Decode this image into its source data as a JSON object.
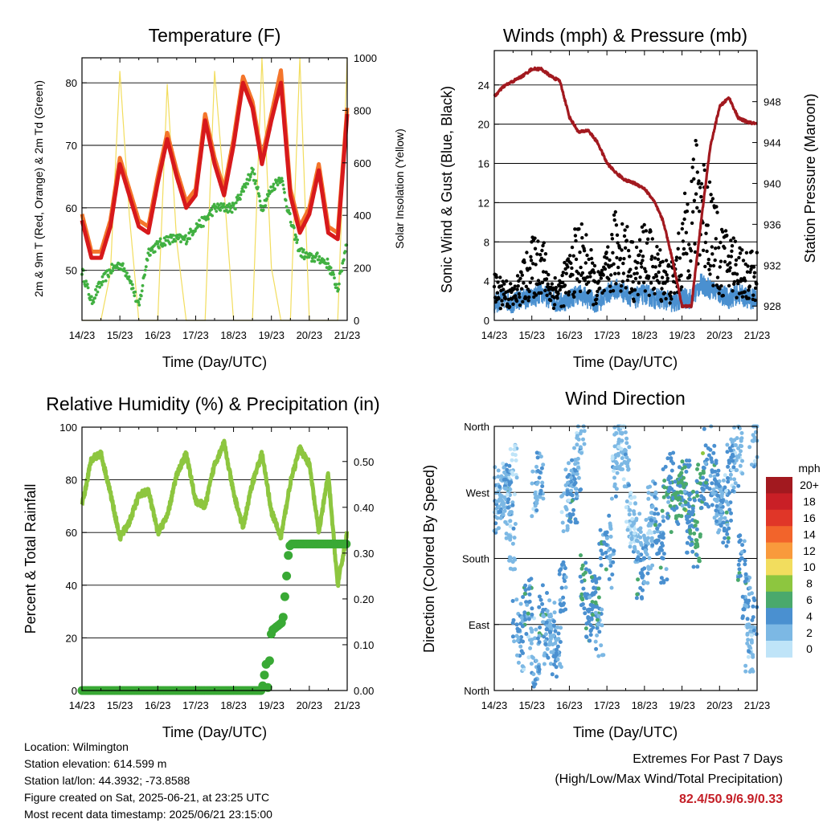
{
  "colors": {
    "temp_2m": "#d7191c",
    "temp_9m": "#f4752b",
    "dewpoint": "#41b041",
    "solar": "#f2dd5e",
    "wind": "#4a90d0",
    "gust": "#000000",
    "pressure": "#a2191f",
    "rh": "#8dc63f",
    "rain": "#39a935"
  },
  "time_ticks": [
    "14/23",
    "15/23",
    "16/23",
    "17/23",
    "18/23",
    "19/23",
    "20/23",
    "21/23"
  ],
  "time_xlabel": "Time (Day/UTC)",
  "wind_colorbar": {
    "unit": "mph",
    "levels": [
      "20+",
      "18",
      "16",
      "14",
      "12",
      "10",
      "8",
      "6",
      "4",
      "2",
      "0"
    ],
    "colors": [
      "#a2191f",
      "#c91f26",
      "#e03628",
      "#f2642b",
      "#f99a3c",
      "#f2dd5e",
      "#8dc63f",
      "#4aa96c",
      "#4a90d0",
      "#7cb8e4",
      "#bfe4f8"
    ]
  },
  "chart_data": [
    {
      "type": "line",
      "title": "Temperature (F)",
      "xlabel": "Time (Day/UTC)",
      "ylabel": "2m & 9m T (Red, Orange) & 2m Td (Green)",
      "y2label": "Solar Insolation (Yellow)",
      "x": [
        0,
        0.25,
        0.5,
        0.75,
        1.0,
        1.25,
        1.5,
        1.75,
        2.0,
        2.25,
        2.5,
        2.75,
        3.0,
        3.25,
        3.5,
        3.75,
        4.0,
        4.25,
        4.5,
        4.75,
        5.0,
        5.25,
        5.5,
        5.75,
        6.0,
        6.25,
        6.5,
        6.75,
        7.0
      ],
      "xlim": [
        0,
        7
      ],
      "ylim": [
        42,
        84
      ],
      "yticks": [
        50,
        60,
        70,
        80
      ],
      "y2lim": [
        0,
        1000
      ],
      "y2ticks": [
        0,
        200,
        400,
        600,
        800,
        1000
      ],
      "series": [
        {
          "values": [
            58,
            52,
            52,
            57,
            67,
            62,
            57,
            56,
            64,
            71,
            65,
            60,
            62,
            74,
            67,
            62,
            70,
            80,
            76,
            67,
            74,
            80,
            62,
            56,
            59,
            66,
            56,
            55,
            75
          ]
        },
        {
          "values": [
            59,
            53,
            53,
            58,
            68,
            63,
            58,
            57,
            65,
            72,
            66,
            61,
            63,
            75,
            68,
            63,
            71,
            81,
            77,
            68,
            75,
            82,
            63,
            57,
            60,
            67,
            57,
            56,
            76
          ]
        },
        {
          "values": [
            50,
            45,
            48,
            50,
            51,
            49,
            44,
            53,
            54,
            55,
            55,
            55,
            57,
            58,
            60,
            60,
            60,
            63,
            66,
            60,
            63,
            65,
            58,
            53,
            52,
            52,
            51,
            47,
            55
          ]
        },
        {
          "values": [
            0,
            0,
            0,
            180,
            950,
            400,
            0,
            0,
            0,
            900,
            300,
            0,
            0,
            0,
            950,
            500,
            0,
            0,
            0,
            1000,
            200,
            0,
            0,
            1000,
            0,
            0,
            0,
            0,
            1000
          ]
        }
      ]
    },
    {
      "type": "line",
      "title": "Winds (mph) & Pressure (mb)",
      "xlabel": "Time (Day/UTC)",
      "ylabel": "Sonic Wind & Gust (Blue, Black)",
      "y2label": "Station Pressure (Maroon)",
      "x": [
        0,
        0.25,
        0.5,
        0.75,
        1.0,
        1.25,
        1.5,
        1.75,
        2.0,
        2.25,
        2.5,
        2.75,
        3.0,
        3.25,
        3.5,
        3.75,
        4.0,
        4.25,
        4.5,
        4.75,
        5.0,
        5.25,
        5.5,
        5.75,
        6.0,
        6.25,
        6.5,
        6.75,
        7.0
      ],
      "xlim": [
        0,
        7
      ],
      "ylim": [
        0,
        27.5
      ],
      "yticks": [
        0,
        4,
        8,
        12,
        16,
        20,
        24
      ],
      "y2lim": [
        926.6,
        953
      ],
      "y2ticks": [
        928,
        932,
        936,
        940,
        944,
        948
      ],
      "series": [
        {
          "values": [
            1.5,
            2,
            1.5,
            2,
            2,
            2.5,
            2,
            1.5,
            2,
            2.5,
            2,
            1.5,
            2.5,
            3,
            2.5,
            2,
            2.5,
            2,
            2,
            1.5,
            2,
            2,
            3.5,
            3,
            2.5,
            2,
            2.5,
            2,
            2
          ]
        },
        {
          "values": [
            4,
            4,
            3,
            5,
            7,
            8,
            4,
            4,
            6,
            9,
            7,
            4,
            6,
            10,
            9,
            6,
            9,
            7,
            6,
            5,
            9,
            15,
            16,
            13,
            8,
            8,
            7,
            6,
            6
          ]
        },
        {
          "values": [
            948.5,
            949.5,
            950,
            950.5,
            951.2,
            951.2,
            950.5,
            950,
            946.5,
            945,
            945.2,
            944,
            942,
            941,
            940.3,
            940,
            939.5,
            938.3,
            936.3,
            932.5,
            928,
            928,
            936,
            943.5,
            947.5,
            948.4,
            946.4,
            946,
            945.8
          ]
        }
      ]
    },
    {
      "type": "line",
      "title": "Relative Humidity (%) & Precipitation (in)",
      "xlabel": "Time (Day/UTC)",
      "ylabel": "Percent & Total Rainfall",
      "x": [
        0,
        0.25,
        0.5,
        0.75,
        1.0,
        1.25,
        1.5,
        1.75,
        2.0,
        2.25,
        2.5,
        2.75,
        3.0,
        3.25,
        3.5,
        3.75,
        4.0,
        4.25,
        4.5,
        4.75,
        5.0,
        5.25,
        5.5,
        5.75,
        6.0,
        6.25,
        6.5,
        6.75,
        7.0
      ],
      "xlim": [
        0,
        7
      ],
      "ylim": [
        0,
        100
      ],
      "yticks": [
        0,
        20,
        40,
        60,
        80,
        100
      ],
      "y2lim": [
        0,
        0.575
      ],
      "y2ticks": [
        0.0,
        0.1,
        0.2,
        0.3,
        0.4,
        0.5
      ],
      "series": [
        {
          "values": [
            70,
            88,
            90,
            75,
            58,
            64,
            74,
            76,
            60,
            66,
            82,
            90,
            72,
            70,
            86,
            94,
            75,
            62,
            79,
            90,
            68,
            58,
            79,
            92,
            86,
            60,
            82,
            40,
            60
          ]
        },
        {
          "values": [
            0,
            0,
            0,
            0,
            0,
            0,
            0,
            0,
            0,
            0,
            0,
            0,
            0,
            0,
            0,
            0,
            0,
            0,
            0,
            0,
            0.13,
            0.15,
            0.32,
            0.32,
            0.32,
            0.32,
            0.32,
            0.32,
            0.32
          ]
        }
      ]
    },
    {
      "type": "scatter",
      "title": "Wind Direction",
      "xlabel": "Time (Day/UTC)",
      "ylabel": "Direction (Colored By Speed)",
      "xlim": [
        0,
        7
      ],
      "ylim": [
        0,
        360
      ],
      "yticks": [
        "North",
        "East",
        "South",
        "West",
        "North"
      ],
      "x": [
        0.1,
        0.1,
        0.2,
        0.3,
        0.35,
        0.4,
        0.5,
        0.5,
        0.6,
        0.7,
        0.8,
        0.9,
        1.0,
        1.1,
        1.1,
        1.2,
        1.3,
        1.4,
        1.5,
        1.6,
        1.7,
        1.8,
        1.9,
        2.0,
        2.1,
        2.2,
        2.3,
        2.4,
        2.5,
        2.6,
        2.7,
        2.8,
        2.9,
        3.0,
        3.1,
        3.2,
        3.3,
        3.4,
        3.5,
        3.6,
        3.7,
        3.8,
        3.9,
        4.0,
        4.1,
        4.2,
        4.3,
        4.4,
        4.5,
        4.6,
        4.7,
        4.8,
        4.9,
        5.0,
        5.1,
        5.2,
        5.3,
        5.4,
        5.5,
        5.6,
        5.7,
        5.8,
        5.9,
        6.0,
        6.1,
        6.2,
        6.3,
        6.4,
        6.5,
        6.6,
        6.7,
        6.8,
        6.9,
        6.9
      ],
      "y": [
        270,
        250,
        265,
        280,
        275,
        240,
        300,
        200,
        90,
        60,
        100,
        120,
        80,
        40,
        270,
        290,
        110,
        70,
        90,
        50,
        60,
        140,
        250,
        280,
        260,
        300,
        330,
        150,
        100,
        130,
        120,
        80,
        200,
        210,
        170,
        290,
        330,
        350,
        310,
        240,
        230,
        210,
        160,
        180,
        200,
        250,
        230,
        210,
        180,
        270,
        290,
        250,
        260,
        270,
        280,
        220,
        240,
        200,
        290,
        280,
        330,
        300,
        270,
        250,
        260,
        230,
        300,
        310,
        330,
        180,
        120,
        60,
        340,
        100
      ],
      "speed": [
        2,
        3,
        2,
        2,
        4,
        2,
        1,
        2,
        3,
        2,
        3,
        4,
        2,
        3,
        2,
        3,
        4,
        3,
        2,
        3,
        3,
        4,
        2,
        3,
        4,
        3,
        2,
        5,
        4,
        4,
        5,
        3,
        4,
        3,
        3,
        2,
        2,
        1,
        2,
        1,
        1,
        2,
        4,
        3,
        2,
        2,
        3,
        4,
        4,
        5,
        4,
        5,
        5,
        6,
        4,
        4,
        5,
        5,
        6,
        4,
        3,
        4,
        3,
        3,
        2,
        4,
        3,
        2,
        2,
        4,
        3,
        2,
        2,
        3
      ]
    }
  ],
  "info": {
    "location": "Location: Wilmington",
    "elevation": "Station elevation: 614.599 m",
    "latlon": "Station lat/lon: 44.3932; -73.8588",
    "created": "Figure created on Sat, 2025-06-21, at 23:25 UTC",
    "recent": "Most recent data timestamp: 2025/06/21 23:15:00"
  },
  "extremes": {
    "title": "Extremes For Past 7 Days",
    "subtitle": "(High/Low/Max Wind/Total Precipitation)",
    "values": "82.4/50.9/6.9/0.33"
  }
}
